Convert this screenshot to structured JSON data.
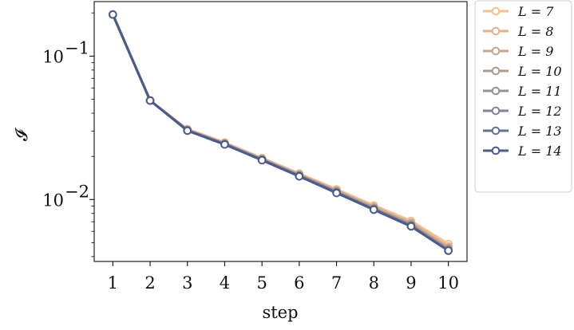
{
  "chart_data": {
    "type": "line",
    "xlabel": "step",
    "ylabel": "𝓘",
    "yscale": "log",
    "xlim": [
      0.5,
      10.5
    ],
    "ylim": [
      0.0037,
      0.24
    ],
    "x": [
      1,
      2,
      3,
      4,
      5,
      6,
      7,
      8,
      9,
      10
    ],
    "x_ticks": [
      "1",
      "2",
      "3",
      "4",
      "5",
      "6",
      "7",
      "8",
      "9",
      "10"
    ],
    "y_ticks": [
      {
        "value": 0.1,
        "base": "10",
        "exp": "−1"
      },
      {
        "value": 0.01,
        "base": "10",
        "exp": "−2"
      }
    ],
    "grid": false,
    "legend_position": "outside-right",
    "series": [
      {
        "name": "L = 7",
        "color": "#f3c18e",
        "values": [
          0.195,
          0.049,
          0.031,
          0.025,
          0.0195,
          0.0152,
          0.0118,
          0.0091,
          0.0071,
          0.0049
        ]
      },
      {
        "name": "L = 8",
        "color": "#dfb28c",
        "values": [
          0.195,
          0.049,
          0.0308,
          0.0248,
          0.0193,
          0.015,
          0.0116,
          0.0089,
          0.0069,
          0.0047
        ]
      },
      {
        "name": "L = 9",
        "color": "#c8a48c",
        "values": [
          0.195,
          0.049,
          0.0306,
          0.0246,
          0.0192,
          0.0149,
          0.0115,
          0.0088,
          0.0068,
          0.0046
        ]
      },
      {
        "name": "L = 10",
        "color": "#b0998f",
        "values": [
          0.195,
          0.049,
          0.0305,
          0.0245,
          0.0191,
          0.0148,
          0.0114,
          0.0087,
          0.0067,
          0.0045
        ]
      },
      {
        "name": "L = 11",
        "color": "#989193",
        "values": [
          0.195,
          0.049,
          0.0304,
          0.0244,
          0.019,
          0.0147,
          0.0113,
          0.0086,
          0.0066,
          0.0045
        ]
      },
      {
        "name": "L = 12",
        "color": "#7f8496",
        "values": [
          0.195,
          0.049,
          0.0303,
          0.0243,
          0.0189,
          0.0146,
          0.0112,
          0.0086,
          0.0066,
          0.0044
        ]
      },
      {
        "name": "L = 13",
        "color": "#657396",
        "values": [
          0.195,
          0.049,
          0.0303,
          0.0243,
          0.0189,
          0.0146,
          0.0112,
          0.0085,
          0.0065,
          0.0044
        ]
      },
      {
        "name": "L = 14",
        "color": "#4a5b8e",
        "values": [
          0.195,
          0.049,
          0.0302,
          0.0242,
          0.0188,
          0.0145,
          0.0111,
          0.0085,
          0.0065,
          0.0044
        ]
      }
    ]
  }
}
